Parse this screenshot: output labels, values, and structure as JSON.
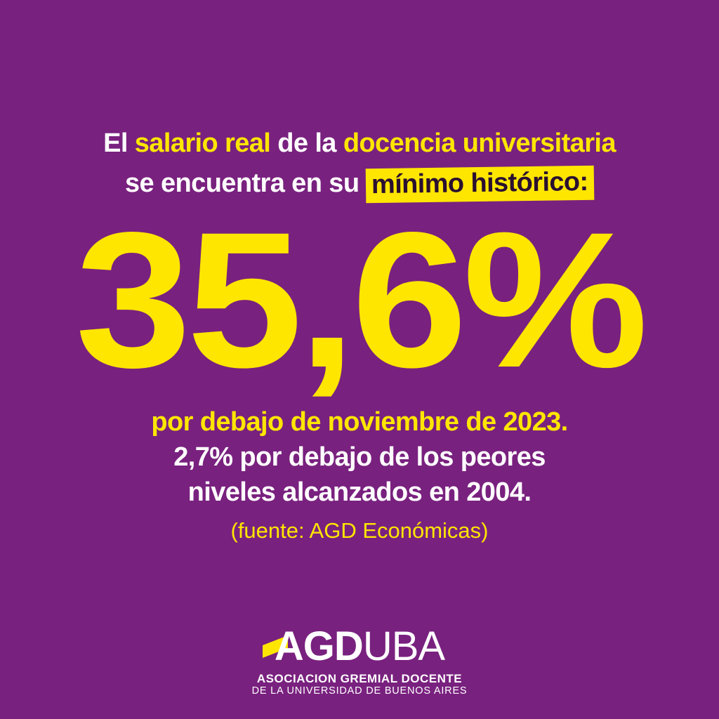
{
  "headline": {
    "line1": [
      "El",
      "salario real",
      "de la",
      "docencia universitaria"
    ],
    "line2": "se encuentra en su",
    "highlight": "mínimo histórico:"
  },
  "big_figure": "35,6%",
  "statements": [
    "por debajo de noviembre de 2023.",
    "2,7% por debajo de los peores",
    "niveles alcanzados en 2004."
  ],
  "source": "(fuente: AGD Económicas)",
  "logo": {
    "primary": "AGD",
    "secondary": "UBA",
    "line1": "ASOCIACION GREMIAL DOCENTE",
    "line2": "DE LA UNIVERSIDAD DE BUENOS AIRES"
  }
}
